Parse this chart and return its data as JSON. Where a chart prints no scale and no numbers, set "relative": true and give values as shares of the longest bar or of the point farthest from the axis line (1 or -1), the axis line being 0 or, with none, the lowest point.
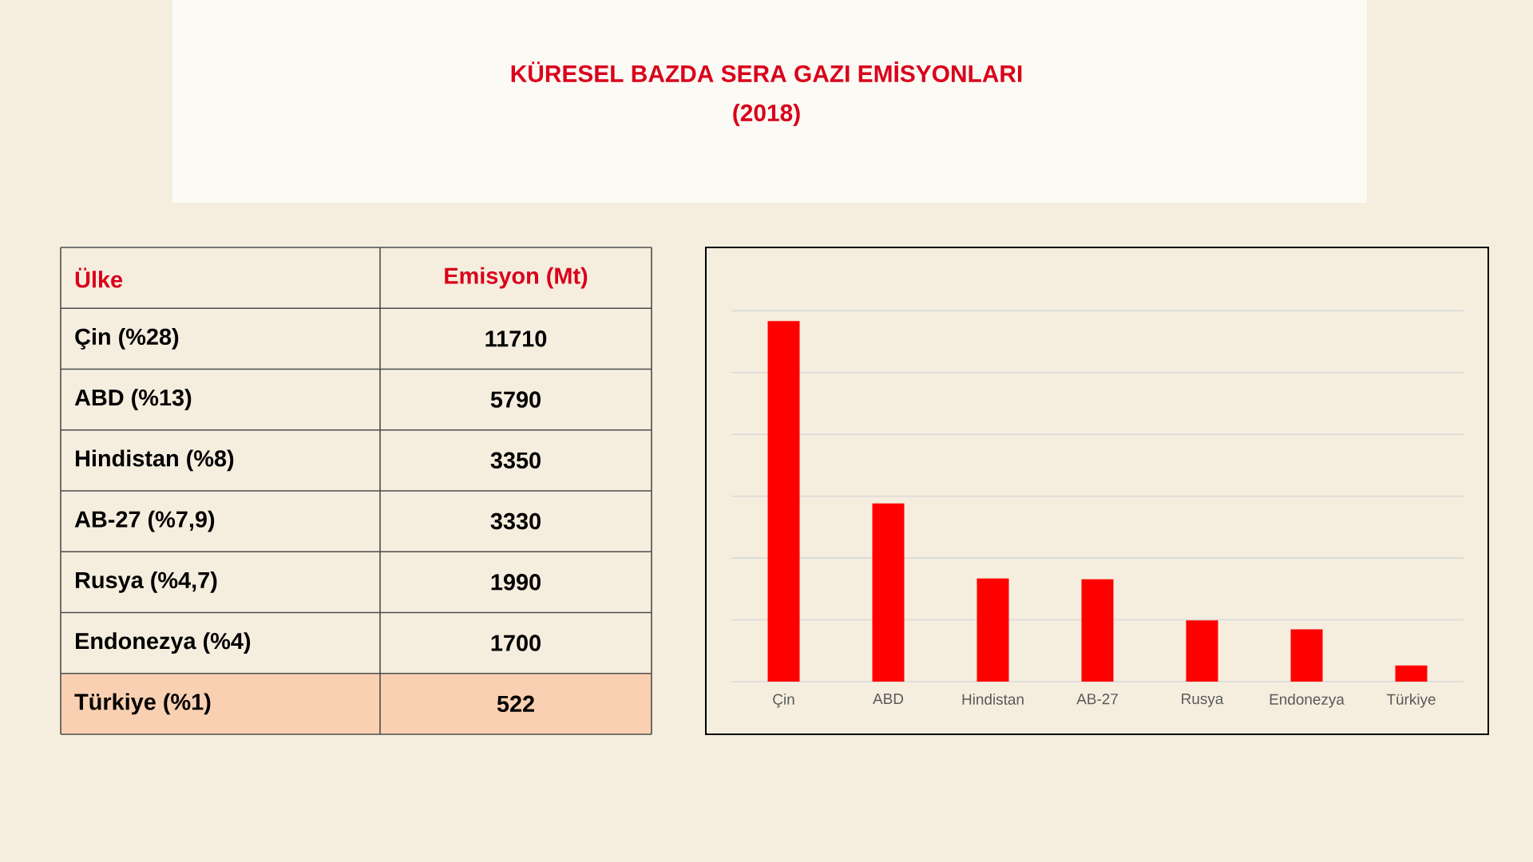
{
  "chart_data": [
    {
      "type": "other",
      "title": "KÜRESEL BAZDA SERA GAZI EMİSYONLARI",
      "subtitle": "(2018)"
    },
    {
      "type": "other",
      "categories": [
        "Çin  (%28)",
        "ABD (%13)",
        "Hindistan (%8)",
        "AB-27 (%7,9)",
        "Rusya (%4,7)",
        "Endonezya (%4)",
        "Türkiye (%1)"
      ],
      "values": [
        11710,
        5790,
        3350,
        3330,
        1990,
        1700,
        522
      ],
      "data_labels": true,
      "annotations": [
        "Ülke",
        "Emisyon (Mt)"
      ]
    },
    {
      "type": "bar",
      "relative": true,
      "categories": [
        "Çin",
        "ABD",
        "Hindistan",
        "AB-27",
        "Rusya",
        "Endonezya",
        "Türkiye"
      ],
      "values": [
        1,
        0.494,
        0.286,
        0.284,
        0.17,
        0.145,
        0.045
      ],
      "color": "#ff0000",
      "grid": "y"
    }
  ]
}
